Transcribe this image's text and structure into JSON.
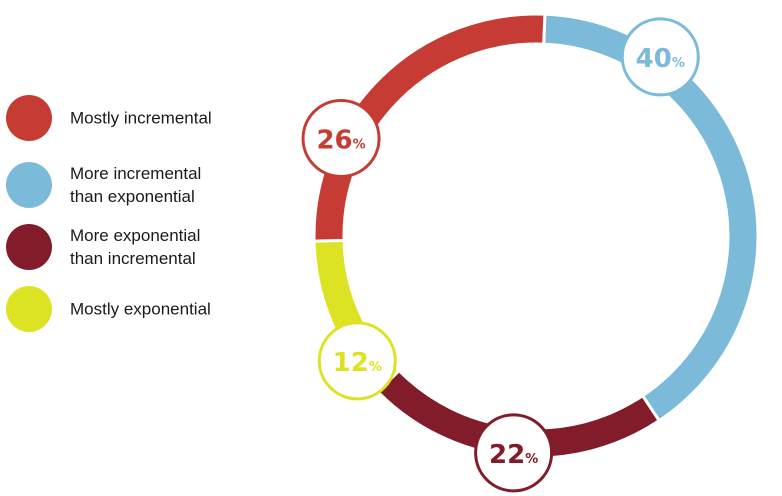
{
  "chart_data": {
    "type": "pie",
    "donut": true,
    "slices": [
      {
        "label": "More incremental\nthan exponential",
        "value": 40,
        "display": "40",
        "unit": "%",
        "color": "#7bbbd9"
      },
      {
        "label": "More exponential\nthan incremental",
        "value": 22,
        "display": "22",
        "unit": "%",
        "color": "#821b2a"
      },
      {
        "label": "Mostly exponential",
        "value": 12,
        "display": "12",
        "unit": "%",
        "color": "#dde322"
      },
      {
        "label": "Mostly incremental",
        "value": 26,
        "display": "26",
        "unit": "%",
        "color": "#c63c35"
      }
    ],
    "legend_order": [
      3,
      0,
      1,
      2
    ],
    "legend_position": "left"
  }
}
